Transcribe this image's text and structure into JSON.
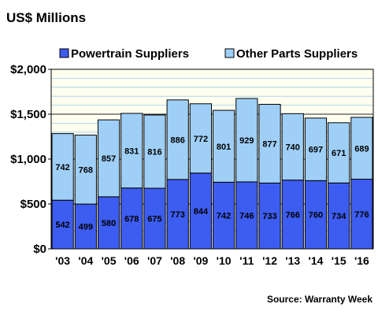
{
  "chart_data": {
    "type": "bar",
    "stacked": true,
    "ylabel": "US$ Millions",
    "source": "Source: Warranty Week",
    "categories": [
      "'03",
      "'04",
      "'05",
      "'06",
      "'07",
      "'08",
      "'09",
      "'10",
      "'11",
      "'12",
      "'13",
      "'14",
      "'15",
      "'16"
    ],
    "series": [
      {
        "name": "Powertrain Suppliers",
        "color": "#3d5cf0",
        "values": [
          542,
          499,
          580,
          678,
          675,
          773,
          844,
          742,
          746,
          733,
          766,
          760,
          734,
          776
        ]
      },
      {
        "name": "Other Parts Suppliers",
        "color": "#9fcff7",
        "values": [
          742,
          768,
          857,
          831,
          816,
          886,
          772,
          801,
          929,
          877,
          740,
          697,
          671,
          689
        ]
      }
    ],
    "ylim": [
      0,
      2000
    ],
    "yticks": [
      0,
      500,
      1000,
      1500,
      2000
    ],
    "ytick_labels": [
      "$0",
      "$500",
      "$1,000",
      "$1,500",
      "$2,000"
    ],
    "minor_step": 100,
    "grid": true,
    "legend_position": "top",
    "plot_background": "#fffff0"
  }
}
